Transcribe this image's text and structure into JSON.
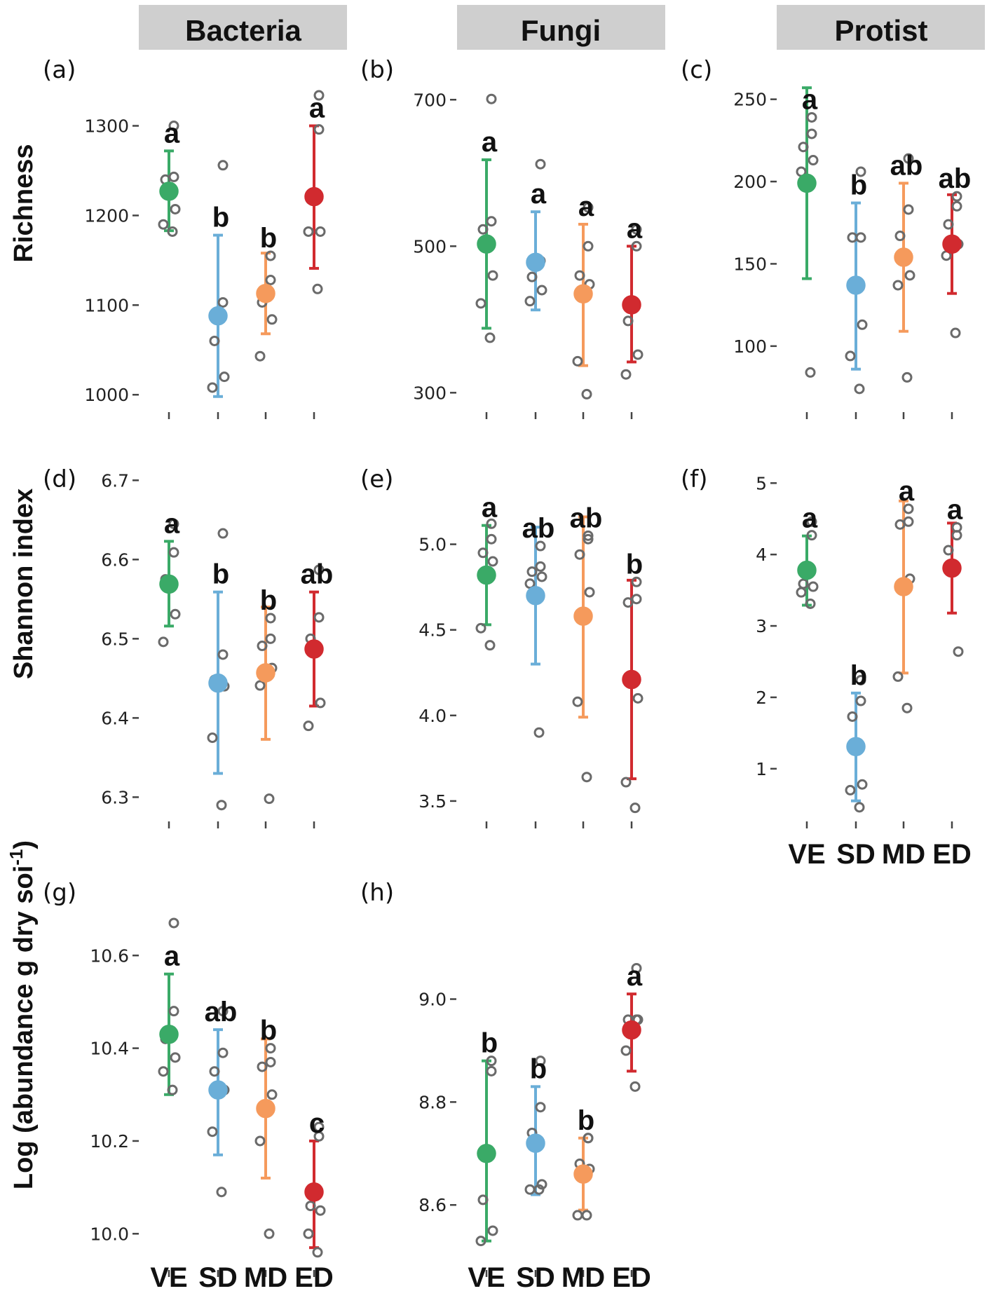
{
  "colors": {
    "VE": "#3aaa67",
    "SD": "#6aaed8",
    "MD": "#f59a5c",
    "ED": "#d12a2f"
  },
  "categories": [
    "VE",
    "SD",
    "MD",
    "ED"
  ],
  "taxa": [
    "Bacteria",
    "Fungi",
    "Protist"
  ],
  "ylabels": [
    "Richness",
    "Shannon index",
    "Log (abundance g dry soi",
    "-1",
    ")"
  ],
  "chart_data": [
    {
      "type": "scatter",
      "panel": "(a)",
      "taxon": "Bacteria",
      "metric": "Richness",
      "ylim": [
        990,
        1370
      ],
      "yticks": [
        1000,
        1100,
        1200,
        1300
      ],
      "tick_labels": [
        "1000",
        "1100",
        "1200",
        "1300"
      ],
      "groups": [
        {
          "cat": "VE",
          "mean": 1227,
          "lo": 1183,
          "hi": 1272,
          "letter": "a",
          "points": [
            1300,
            1243,
            1240,
            1207,
            1190,
            1182
          ]
        },
        {
          "cat": "SD",
          "mean": 1088,
          "lo": 998,
          "hi": 1178,
          "letter": "b",
          "points": [
            1256,
            1103,
            1060,
            1020,
            1008
          ]
        },
        {
          "cat": "MD",
          "mean": 1113,
          "lo": 1068,
          "hi": 1158,
          "letter": "b",
          "points": [
            1155,
            1128,
            1103,
            1084,
            1043
          ]
        },
        {
          "cat": "ED",
          "mean": 1221,
          "lo": 1141,
          "hi": 1300,
          "letter": "a",
          "points": [
            1334,
            1296,
            1218,
            1182,
            1182,
            1118
          ]
        }
      ]
    },
    {
      "type": "scatter",
      "panel": "(b)",
      "taxon": "Fungi",
      "metric": "Richness",
      "ylim": [
        285,
        750
      ],
      "yticks": [
        300,
        500,
        700
      ],
      "tick_labels": [
        "300",
        "500",
        "700"
      ],
      "groups": [
        {
          "cat": "VE",
          "mean": 503,
          "lo": 388,
          "hi": 618,
          "letter": "a",
          "points": [
            701,
            534,
            523,
            460,
            422,
            375
          ]
        },
        {
          "cat": "SD",
          "mean": 478,
          "lo": 413,
          "hi": 547,
          "letter": "a",
          "points": [
            612,
            480,
            458,
            440,
            425
          ]
        },
        {
          "cat": "MD",
          "mean": 435,
          "lo": 337,
          "hi": 530,
          "letter": "a",
          "points": [
            553,
            500,
            460,
            448,
            343,
            298
          ]
        },
        {
          "cat": "ED",
          "mean": 420,
          "lo": 342,
          "hi": 500,
          "letter": "a",
          "points": [
            523,
            500,
            398,
            352,
            325
          ]
        }
      ]
    },
    {
      "type": "scatter",
      "panel": "(c)",
      "taxon": "Protist",
      "metric": "Richness",
      "ylim": [
        65,
        272
      ],
      "yticks": [
        100,
        150,
        200,
        250
      ],
      "tick_labels": [
        "100",
        "150",
        "200",
        "250"
      ],
      "groups": [
        {
          "cat": "VE",
          "mean": 199,
          "lo": 141,
          "hi": 257,
          "letter": "a",
          "points": [
            239,
            229,
            221,
            213,
            206,
            84
          ]
        },
        {
          "cat": "SD",
          "mean": 137,
          "lo": 86,
          "hi": 187,
          "letter": "b",
          "points": [
            206,
            166,
            166,
            113,
            94,
            74
          ]
        },
        {
          "cat": "MD",
          "mean": 154,
          "lo": 109,
          "hi": 199,
          "letter": "ab",
          "points": [
            214,
            183,
            167,
            143,
            137,
            81
          ]
        },
        {
          "cat": "ED",
          "mean": 162,
          "lo": 132,
          "hi": 192,
          "letter": "ab",
          "points": [
            191,
            185,
            174,
            162,
            155,
            108
          ]
        }
      ]
    },
    {
      "type": "scatter",
      "panel": "(d)",
      "taxon": "Bacteria",
      "metric": "Shannon index",
      "ylim": [
        6.28,
        6.71
      ],
      "yticks": [
        6.3,
        6.4,
        6.5,
        6.6,
        6.7
      ],
      "tick_labels": [
        "6.3",
        "6.4",
        "6.5",
        "6.6",
        "6.7"
      ],
      "groups": [
        {
          "cat": "VE",
          "mean": 6.569,
          "lo": 6.516,
          "hi": 6.623,
          "letter": "a",
          "points": [
            6.645,
            6.609,
            6.575,
            6.531,
            6.496
          ]
        },
        {
          "cat": "SD",
          "mean": 6.444,
          "lo": 6.33,
          "hi": 6.559,
          "letter": "b",
          "points": [
            6.633,
            6.48,
            6.448,
            6.44,
            6.375,
            6.29
          ]
        },
        {
          "cat": "MD",
          "mean": 6.457,
          "lo": 6.373,
          "hi": 6.54,
          "letter": "b",
          "points": [
            6.526,
            6.5,
            6.491,
            6.463,
            6.441,
            6.298
          ]
        },
        {
          "cat": "ED",
          "mean": 6.487,
          "lo": 6.415,
          "hi": 6.559,
          "letter": "ab",
          "points": [
            6.587,
            6.527,
            6.5,
            6.419,
            6.39
          ]
        }
      ]
    },
    {
      "type": "scatter",
      "panel": "(e)",
      "taxon": "Fungi",
      "metric": "Shannon index",
      "ylim": [
        3.43,
        5.42
      ],
      "yticks": [
        3.5,
        4.0,
        4.5,
        5.0
      ],
      "tick_labels": [
        "3.5",
        "4.0",
        "4.5",
        "5.0"
      ],
      "groups": [
        {
          "cat": "VE",
          "mean": 4.82,
          "lo": 4.53,
          "hi": 5.11,
          "letter": "a",
          "points": [
            5.12,
            5.03,
            4.95,
            4.9,
            4.51,
            4.41
          ]
        },
        {
          "cat": "SD",
          "mean": 4.7,
          "lo": 4.3,
          "hi": 5.1,
          "letter": "ab",
          "points": [
            4.99,
            4.87,
            4.84,
            4.81,
            4.77,
            3.9
          ]
        },
        {
          "cat": "MD",
          "mean": 4.58,
          "lo": 3.99,
          "hi": 5.16,
          "letter": "ab",
          "points": [
            5.05,
            5.03,
            4.94,
            4.72,
            4.08,
            3.64
          ]
        },
        {
          "cat": "ED",
          "mean": 4.21,
          "lo": 3.63,
          "hi": 4.79,
          "letter": "b",
          "points": [
            4.78,
            4.68,
            4.66,
            4.1,
            3.61,
            3.46
          ]
        }
      ]
    },
    {
      "type": "scatter",
      "panel": "(f)",
      "taxon": "Protist",
      "metric": "Shannon index",
      "ylim": [
        0.38,
        5.15
      ],
      "yticks": [
        1,
        2,
        3,
        4,
        5
      ],
      "tick_labels": [
        "1",
        "2",
        "3",
        "4",
        "5"
      ],
      "groups": [
        {
          "cat": "VE",
          "mean": 3.78,
          "lo": 3.29,
          "hi": 4.26,
          "letter": "a",
          "points": [
            4.46,
            4.27,
            3.59,
            3.55,
            3.47,
            3.31
          ]
        },
        {
          "cat": "SD",
          "mean": 1.31,
          "lo": 0.55,
          "hi": 2.06,
          "letter": "b",
          "points": [
            2.24,
            1.95,
            1.73,
            0.78,
            0.7,
            0.46
          ]
        },
        {
          "cat": "MD",
          "mean": 3.55,
          "lo": 2.34,
          "hi": 4.75,
          "letter": "a",
          "points": [
            4.64,
            4.46,
            4.42,
            3.66,
            2.29,
            1.85
          ]
        },
        {
          "cat": "ED",
          "mean": 3.81,
          "lo": 3.18,
          "hi": 4.44,
          "letter": "a",
          "points": [
            4.38,
            4.27,
            4.06,
            2.64
          ]
        }
      ]
    },
    {
      "type": "scatter",
      "panel": "(g)",
      "taxon": "Bacteria",
      "metric": "Log (abundance g dry soil-1)",
      "ylim": [
        9.94,
        10.75
      ],
      "yticks": [
        10.0,
        10.2,
        10.4,
        10.6
      ],
      "tick_labels": [
        "10.0",
        "10.2",
        "10.4",
        "10.6"
      ],
      "groups": [
        {
          "cat": "VE",
          "mean": 10.43,
          "lo": 10.3,
          "hi": 10.56,
          "letter": "a",
          "points": [
            10.67,
            10.48,
            10.42,
            10.38,
            10.35,
            10.31
          ]
        },
        {
          "cat": "SD",
          "mean": 10.31,
          "lo": 10.17,
          "hi": 10.44,
          "letter": "ab",
          "points": [
            10.48,
            10.39,
            10.35,
            10.31,
            10.22,
            10.09
          ]
        },
        {
          "cat": "MD",
          "mean": 10.27,
          "lo": 10.12,
          "hi": 10.42,
          "letter": "b",
          "points": [
            10.4,
            10.37,
            10.36,
            10.3,
            10.2,
            10.0
          ]
        },
        {
          "cat": "ED",
          "mean": 10.09,
          "lo": 9.97,
          "hi": 10.2,
          "letter": "c",
          "points": [
            10.23,
            10.21,
            10.06,
            10.05,
            10.0,
            9.96
          ]
        }
      ]
    },
    {
      "type": "scatter",
      "panel": "(h)",
      "taxon": "Fungi",
      "metric": "Log (abundance g dry soil-1)",
      "ylim": [
        8.49,
        9.22
      ],
      "yticks": [
        8.6,
        8.8,
        9.0
      ],
      "tick_labels": [
        "8.6",
        "8.8",
        "9.0"
      ],
      "groups": [
        {
          "cat": "VE",
          "mean": 8.7,
          "lo": 8.53,
          "hi": 8.88,
          "letter": "b",
          "points": [
            8.88,
            8.86,
            8.61,
            8.55,
            8.53
          ]
        },
        {
          "cat": "SD",
          "mean": 8.72,
          "lo": 8.62,
          "hi": 8.83,
          "letter": "b",
          "points": [
            8.88,
            8.79,
            8.74,
            8.64,
            8.63,
            8.63
          ]
        },
        {
          "cat": "MD",
          "mean": 8.66,
          "lo": 8.59,
          "hi": 8.73,
          "letter": "b",
          "points": [
            8.73,
            8.73,
            8.68,
            8.67,
            8.58,
            8.58
          ]
        },
        {
          "cat": "ED",
          "mean": 8.94,
          "lo": 8.86,
          "hi": 9.01,
          "letter": "a",
          "points": [
            9.06,
            8.96,
            8.96,
            8.96,
            8.9,
            8.83
          ]
        }
      ]
    }
  ]
}
